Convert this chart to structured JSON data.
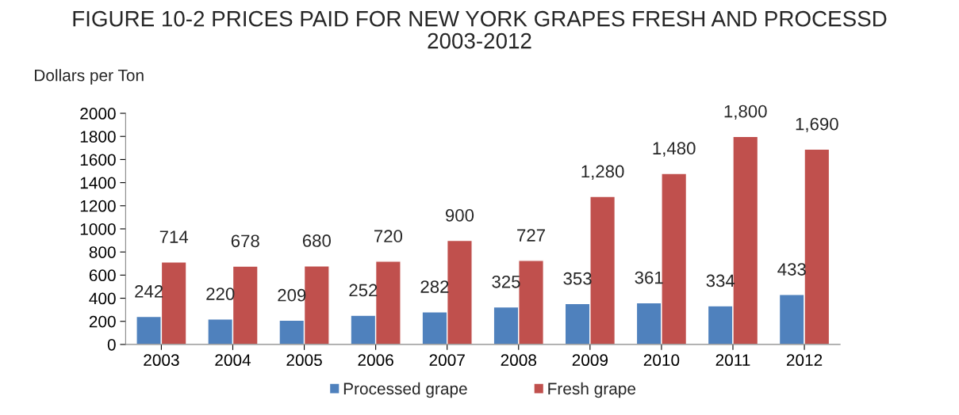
{
  "chart_data": {
    "type": "bar",
    "title": "FIGURE 10-2 PRICES PAID FOR NEW YORK GRAPES FRESH AND PROCESSD\n2003-2012",
    "ylabel": "Dollars per Ton",
    "categories": [
      "2003",
      "2004",
      "2005",
      "2006",
      "2007",
      "2008",
      "2009",
      "2010",
      "2011",
      "2012"
    ],
    "series": [
      {
        "name": "Processed grape",
        "color": "#4f81bd",
        "values": [
          242,
          220,
          209,
          252,
          282,
          325,
          353,
          361,
          334,
          433
        ],
        "value_labels": [
          "242",
          "220",
          "209",
          "252",
          "282",
          "325",
          "353",
          "361",
          "334",
          "433"
        ]
      },
      {
        "name": "Fresh grape",
        "color": "#c0504d",
        "values": [
          714,
          678,
          680,
          720,
          900,
          727,
          1280,
          1480,
          1800,
          1690
        ],
        "value_labels": [
          "714",
          "678",
          "680",
          "720",
          "900",
          "727",
          "1,280",
          "1,480",
          "1,800",
          "1,690"
        ]
      }
    ],
    "ylim": [
      0,
      2000
    ],
    "yticks": [
      0,
      200,
      400,
      600,
      800,
      1000,
      1200,
      1400,
      1600,
      1800,
      2000
    ],
    "grid": false,
    "legend": "bottom"
  }
}
